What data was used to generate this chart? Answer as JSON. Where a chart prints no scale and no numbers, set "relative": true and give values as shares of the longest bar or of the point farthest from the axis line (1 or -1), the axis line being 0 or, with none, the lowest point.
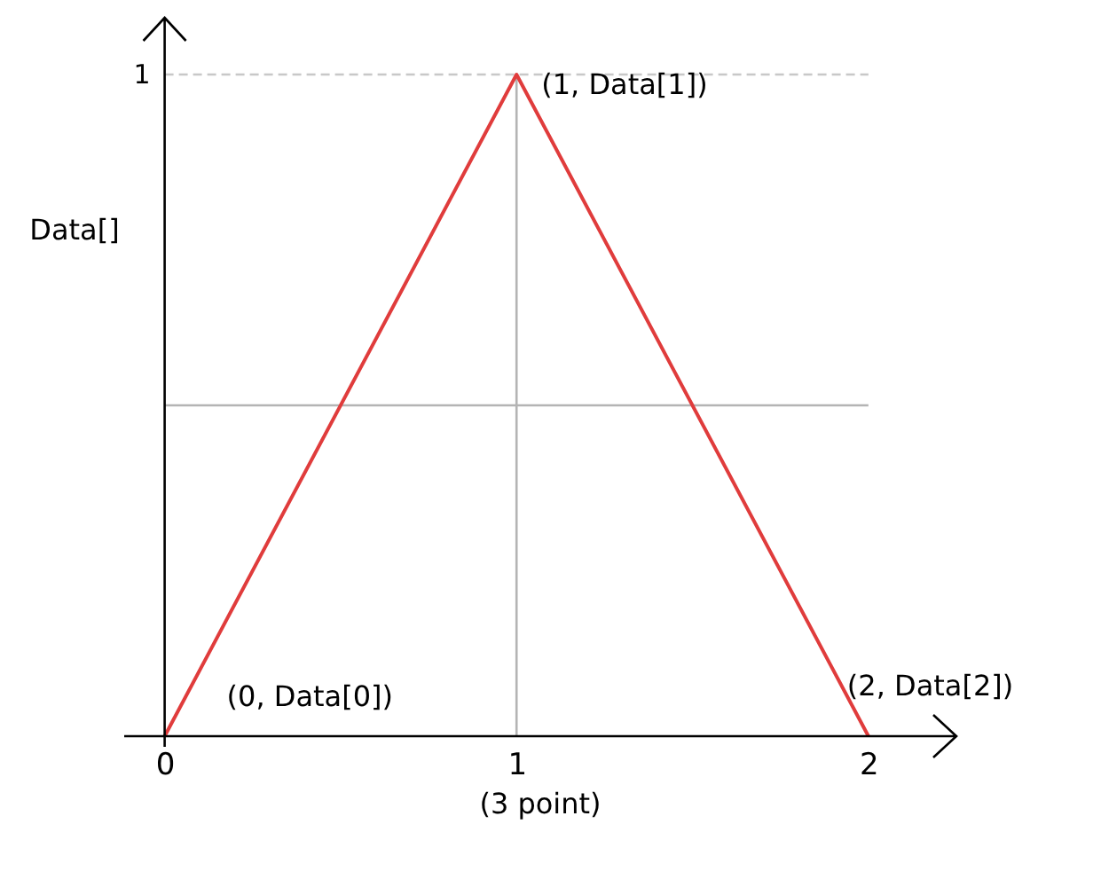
{
  "chart_data": {
    "type": "line",
    "relative": true,
    "xlabel": "(3 point)",
    "ylabel": "Data[]",
    "x": [
      0,
      1,
      2
    ],
    "xlim": [
      -0.12,
      2.25
    ],
    "xticks": [
      0,
      1,
      2
    ],
    "series": [
      {
        "color": "#e03c3c",
        "values": [
          0,
          1,
          0
        ]
      }
    ],
    "ref_lines": [
      {
        "axis": "y",
        "value": 1,
        "label": "1",
        "color": "#c8c8c8",
        "line_style": "dashed"
      },
      {
        "axis": "x",
        "value": 1,
        "color": "#b4b4b4"
      },
      {
        "axis": "y",
        "value": 0.5,
        "color": "#b4b4b4"
      }
    ],
    "annotations": [
      {
        "text": "(0, Data[0])",
        "x": 0,
        "y": 0
      },
      {
        "text": "(1, Data[1])",
        "x": 1,
        "y": 1
      },
      {
        "text": "(2, Data[2])",
        "x": 2,
        "y": 0
      }
    ],
    "marker": "none",
    "line_style": "solid"
  }
}
